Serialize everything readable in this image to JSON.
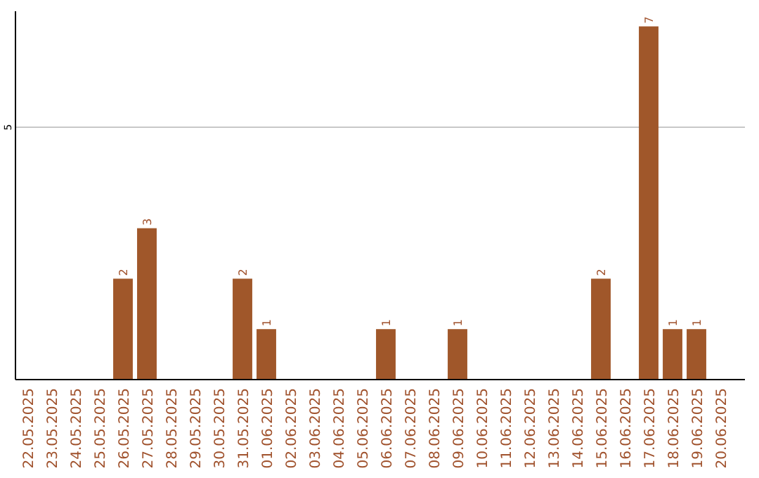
{
  "chart_data": {
    "type": "bar",
    "categories": [
      "22.05.2025",
      "23.05.2025",
      "24.05.2025",
      "25.05.2025",
      "26.05.2025",
      "27.05.2025",
      "28.05.2025",
      "29.05.2025",
      "30.05.2025",
      "31.05.2025",
      "01.06.2025",
      "02.06.2025",
      "03.06.2025",
      "04.06.2025",
      "05.06.2025",
      "06.06.2025",
      "07.06.2025",
      "08.06.2025",
      "09.06.2025",
      "10.06.2025",
      "11.06.2025",
      "12.06.2025",
      "13.06.2025",
      "14.06.2025",
      "15.06.2025",
      "16.06.2025",
      "17.06.2025",
      "18.06.2025",
      "19.06.2025",
      "20.06.2025"
    ],
    "values": [
      0,
      0,
      0,
      0,
      2,
      3,
      0,
      0,
      0,
      2,
      1,
      0,
      0,
      0,
      0,
      1,
      0,
      0,
      1,
      0,
      0,
      0,
      0,
      0,
      2,
      0,
      7,
      1,
      1,
      0
    ],
    "value_labels": [
      null,
      null,
      null,
      null,
      "2",
      "3",
      null,
      null,
      null,
      "2",
      "1",
      null,
      null,
      null,
      null,
      "1",
      null,
      null,
      "1",
      null,
      null,
      null,
      null,
      null,
      "2",
      null,
      "7",
      "1",
      "1",
      null
    ],
    "color": "#a0572a",
    "ylim": [
      0,
      7.3
    ],
    "yticks": [
      5
    ],
    "grid": "y"
  }
}
